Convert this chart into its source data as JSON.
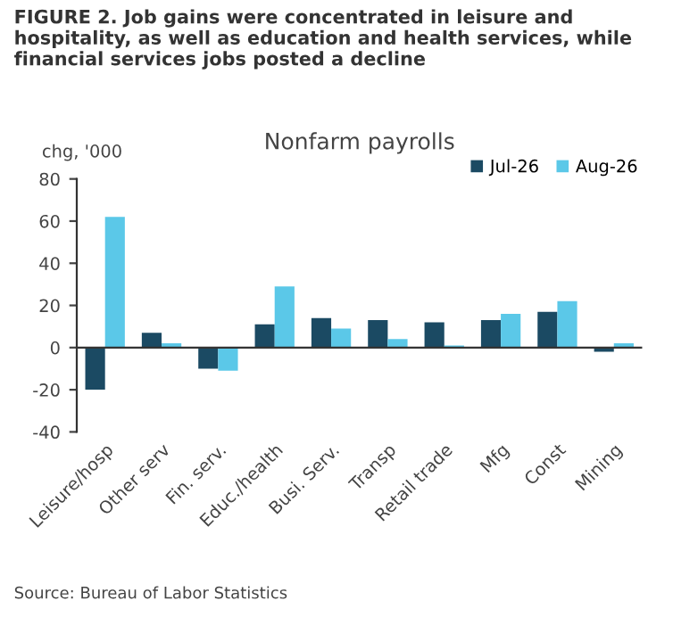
{
  "chart_data": {
    "type": "bar",
    "title": "FIGURE 2. Job gains were concentrated in leisure and hospitality, as well as education and health services, while financial services jobs posted a decline",
    "subtitle": "Nonfarm payrolls",
    "ylabel": "chg, '000",
    "categories": [
      "Leisure/hosp",
      "Other serv",
      "Fin. serv.",
      "Educ./health",
      "Busi. Serv.",
      "Transp",
      "Retail trade",
      "Mfg",
      "Const",
      "Mining"
    ],
    "series": [
      {
        "name": "Jul-26",
        "color": "#1b4a63",
        "values": [
          -20,
          7,
          -10,
          11,
          14,
          13,
          12,
          13,
          17,
          -2
        ]
      },
      {
        "name": "Aug-26",
        "color": "#5bc8e8",
        "values": [
          62,
          2,
          -11,
          29,
          9,
          4,
          1,
          16,
          22,
          2
        ]
      }
    ],
    "ylim": [
      -40,
      80
    ],
    "yticks": [
      -40,
      -20,
      0,
      20,
      40,
      60,
      80
    ],
    "legend": "top right",
    "annotations": [
      "Source: Bureau of Labor Statistics"
    ]
  }
}
